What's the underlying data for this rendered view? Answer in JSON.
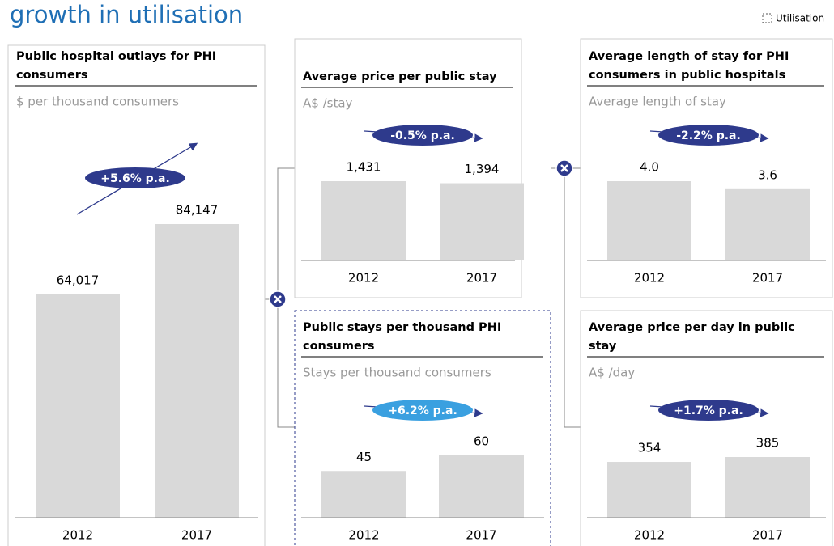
{
  "header": {
    "title": "growth in utilisation",
    "legend": "Utilisation"
  },
  "chart_data": [
    {
      "type": "bar",
      "title": [
        "Public hospital outlays for PHI",
        "consumers"
      ],
      "subtitle": "$ per thousand consumers",
      "categories": [
        "2012",
        "2017"
      ],
      "values": [
        64017,
        84147
      ],
      "value_labels": [
        "64,017",
        "84,147"
      ],
      "color": "#d9d9d9",
      "annotation": "+5.6% p.a.",
      "annotation_color": "#2e3a8c"
    },
    {
      "type": "bar",
      "title": [
        "Average price per public stay"
      ],
      "subtitle": "A$ /stay",
      "categories": [
        "2012",
        "2017"
      ],
      "values": [
        1431,
        1394
      ],
      "value_labels": [
        "1,431",
        "1,394"
      ],
      "color": "#d9d9d9",
      "annotation": "-0.5% p.a.",
      "annotation_color": "#2e3a8c"
    },
    {
      "type": "bar",
      "title": [
        "Public stays per thousand PHI",
        "consumers"
      ],
      "subtitle": "Stays per thousand consumers",
      "categories": [
        "2012",
        "2017"
      ],
      "values": [
        45,
        60
      ],
      "value_labels": [
        "45",
        "60"
      ],
      "color": "#d9d9d9",
      "annotation": "+6.2% p.a.",
      "annotation_color": "#3aa0e0",
      "highlighted": true
    },
    {
      "type": "bar",
      "title": [
        "Average length of stay for PHI",
        "consumers in public hospitals"
      ],
      "subtitle": "Average length of stay",
      "categories": [
        "2012",
        "2017"
      ],
      "values": [
        4.0,
        3.6
      ],
      "value_labels": [
        "4.0",
        "3.6"
      ],
      "color": "#d9d9d9",
      "annotation": "-2.2% p.a.",
      "annotation_color": "#2e3a8c"
    },
    {
      "type": "bar",
      "title": [
        "Average price per day in public",
        "stay"
      ],
      "subtitle": "A$ /day",
      "categories": [
        "2012",
        "2017"
      ],
      "values": [
        354,
        385
      ],
      "value_labels": [
        "354",
        "385"
      ],
      "color": "#d9d9d9",
      "annotation": "+1.7% p.a.",
      "annotation_color": "#2e3a8c"
    }
  ]
}
